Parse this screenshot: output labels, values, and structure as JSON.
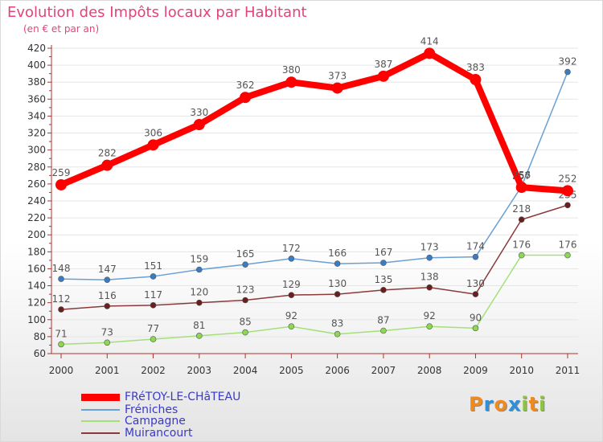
{
  "title": "Evolution des Impôts locaux par Habitant",
  "subtitle": "(en € et par an)",
  "colors": {
    "title": "#e0457a",
    "axis": "#b03030",
    "grid": "#e6e6e6",
    "tick_text": "#333333",
    "label_text": "#555555",
    "legend_text": "#3a3ac8"
  },
  "chart_data": {
    "type": "line",
    "title": "Evolution des Impôts locaux par Habitant",
    "subtitle": "(en € et par an)",
    "xlabel": "",
    "ylabel": "",
    "categories": [
      "2000",
      "2001",
      "2002",
      "2003",
      "2004",
      "2005",
      "2006",
      "2007",
      "2008",
      "2009",
      "2010",
      "2011"
    ],
    "ylim": [
      60,
      420
    ],
    "yticks": [
      60,
      80,
      100,
      120,
      140,
      160,
      180,
      200,
      220,
      240,
      260,
      280,
      300,
      320,
      340,
      360,
      380,
      400,
      420
    ],
    "grid": true,
    "legend_position": "bottom-left",
    "series": [
      {
        "name": "FRéTOY-LE-CHâTEAU",
        "color": "#ff0000",
        "marker": "#ff0000",
        "emphasis": true,
        "values": [
          259,
          282,
          306,
          330,
          362,
          380,
          373,
          387,
          414,
          383,
          256,
          252
        ],
        "labels": [
          "259",
          "282",
          "306",
          "330",
          "362",
          "380",
          "373",
          "387",
          "414",
          "383",
          "256",
          "252"
        ]
      },
      {
        "name": "Fréniches",
        "color": "#6aa0d4",
        "marker": "#3a7cc4",
        "emphasis": false,
        "values": [
          148,
          147,
          151,
          159,
          165,
          172,
          166,
          167,
          173,
          174,
          257,
          392
        ],
        "labels": [
          "148",
          "147",
          "151",
          "159",
          "165",
          "172",
          "166",
          "167",
          "173",
          "174",
          "257",
          "392"
        ]
      },
      {
        "name": "Campagne",
        "color": "#a4e07a",
        "marker": "#8cd850",
        "emphasis": false,
        "values": [
          71,
          73,
          77,
          81,
          85,
          92,
          83,
          87,
          92,
          90,
          176,
          176
        ],
        "labels": [
          "71",
          "73",
          "77",
          "81",
          "85",
          "92",
          "83",
          "87",
          "92",
          "90",
          "176",
          "176"
        ]
      },
      {
        "name": "Muirancourt",
        "color": "#8a3a3a",
        "marker": "#6a1e1e",
        "emphasis": false,
        "values": [
          112,
          116,
          117,
          120,
          123,
          129,
          130,
          135,
          138,
          130,
          218,
          235
        ],
        "labels": [
          "112",
          "116",
          "117",
          "120",
          "123",
          "129",
          "130",
          "135",
          "138",
          "130",
          "218",
          "235"
        ]
      }
    ]
  },
  "logo": {
    "letters": [
      "P",
      "r",
      "o",
      "x",
      "i",
      "t",
      "i"
    ],
    "colors": [
      "#f08a1e",
      "#2f8fd8",
      "#f08a1e",
      "#2f8fd8",
      "#8cc43c",
      "#f08a1e",
      "#8cc43c"
    ]
  }
}
